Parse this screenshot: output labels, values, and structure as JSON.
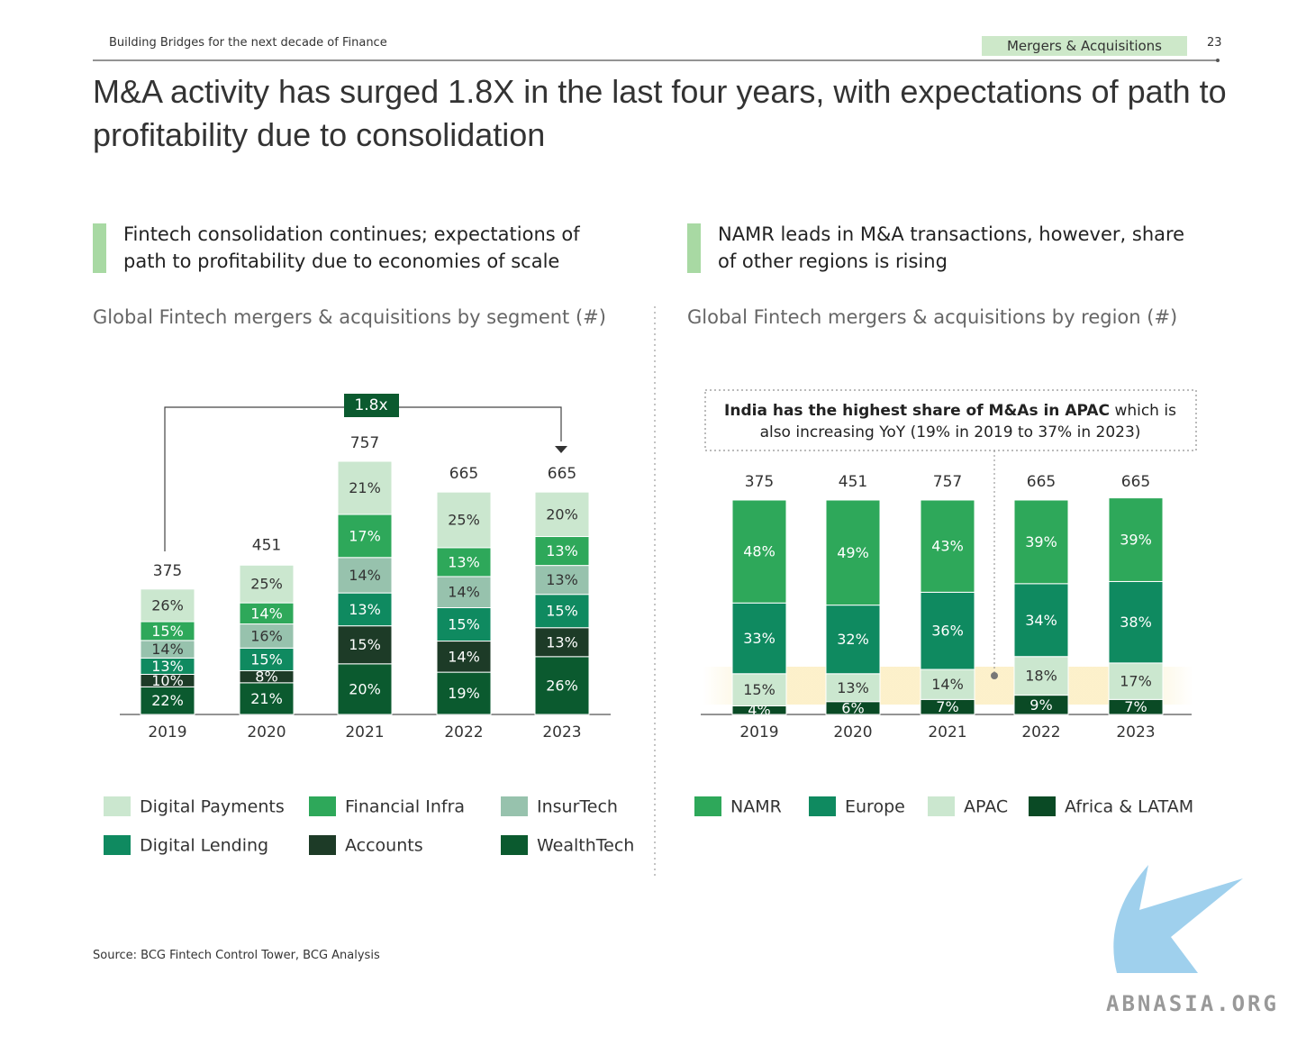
{
  "header": {
    "title": "Building Bridges for the next decade of Finance",
    "section": "Mergers & Acquisitions",
    "page": "23"
  },
  "title": "M&A activity has surged 1.8X in the last four years, with expectations of path to profitability due to consolidation",
  "panels": [
    {
      "heading": "Fintech consolidation continues; expectations of path to profitability due to economies of scale"
    },
    {
      "heading": "NAMR leads in M&A transactions, however, share of other regions is rising"
    }
  ],
  "chart_data": [
    {
      "type": "bar",
      "stacked": true,
      "normalized": false,
      "title": "Global Fintech mergers & acquisitions by segment (#)",
      "categories": [
        "2019",
        "2020",
        "2021",
        "2022",
        "2023"
      ],
      "totals": [
        375,
        451,
        757,
        665,
        665
      ],
      "annotation": "1.8x",
      "series": [
        {
          "name": "WealthTech",
          "color": "#0b5a2f",
          "values": [
            22,
            21,
            20,
            19,
            26
          ],
          "value_labels": [
            "22%",
            "21%",
            "20%",
            "19%",
            "26%"
          ]
        },
        {
          "name": "Accounts",
          "color": "#1d3b27",
          "values": [
            10,
            8,
            15,
            14,
            13
          ],
          "value_labels": [
            "10%",
            "8%",
            "15%",
            "14%",
            "13%"
          ]
        },
        {
          "name": "Digital Lending",
          "color": "#0f8a60",
          "values": [
            13,
            15,
            13,
            15,
            15
          ],
          "value_labels": [
            "13%",
            "15%",
            "13%",
            "15%",
            "15%"
          ]
        },
        {
          "name": "InsurTech",
          "color": "#97c2ad",
          "values": [
            14,
            16,
            14,
            14,
            13
          ],
          "value_labels": [
            "14%",
            "16%",
            "14%",
            "14%",
            "13%"
          ]
        },
        {
          "name": "Financial Infra",
          "color": "#2ea85a",
          "values": [
            15,
            14,
            17,
            13,
            13
          ],
          "value_labels": [
            "15%",
            "14%",
            "17%",
            "13%",
            "13%"
          ]
        },
        {
          "name": "Digital Payments",
          "color": "#cbe7cf",
          "values": [
            26,
            25,
            21,
            25,
            20
          ],
          "value_labels": [
            "26%",
            "25%",
            "21%",
            "25%",
            "20%"
          ]
        }
      ]
    },
    {
      "type": "bar",
      "stacked": true,
      "normalized": true,
      "title": "Global Fintech mergers & acquisitions by region (#)",
      "categories": [
        "2019",
        "2020",
        "2021",
        "2022",
        "2023"
      ],
      "totals": [
        375,
        451,
        757,
        665,
        665
      ],
      "annotation": {
        "bold": "India has the highest share of M&As in APAC",
        "text": "which is also increasing YoY (19% in 2019 to 37% in 2023)"
      },
      "series": [
        {
          "name": "Africa & LATAM",
          "color": "#0a4a25",
          "values": [
            4,
            6,
            7,
            9,
            7
          ],
          "value_labels": [
            "4%",
            "6%",
            "7%",
            "9%",
            "7%"
          ]
        },
        {
          "name": "APAC",
          "color": "#cbe7cf",
          "values": [
            15,
            13,
            14,
            18,
            17
          ],
          "value_labels": [
            "15%",
            "13%",
            "14%",
            "18%",
            "17%"
          ]
        },
        {
          "name": "Europe",
          "color": "#0f8a60",
          "values": [
            33,
            32,
            36,
            34,
            38
          ],
          "value_labels": [
            "33%",
            "32%",
            "36%",
            "34%",
            "38%"
          ]
        },
        {
          "name": "NAMR",
          "color": "#2ea85a",
          "values": [
            48,
            49,
            43,
            39,
            39
          ],
          "value_labels": [
            "48%",
            "49%",
            "43%",
            "39%",
            "39%"
          ]
        }
      ]
    }
  ],
  "source": "Source: BCG Fintech Control Tower, BCG Analysis",
  "watermark": "ABNASIA.ORG"
}
